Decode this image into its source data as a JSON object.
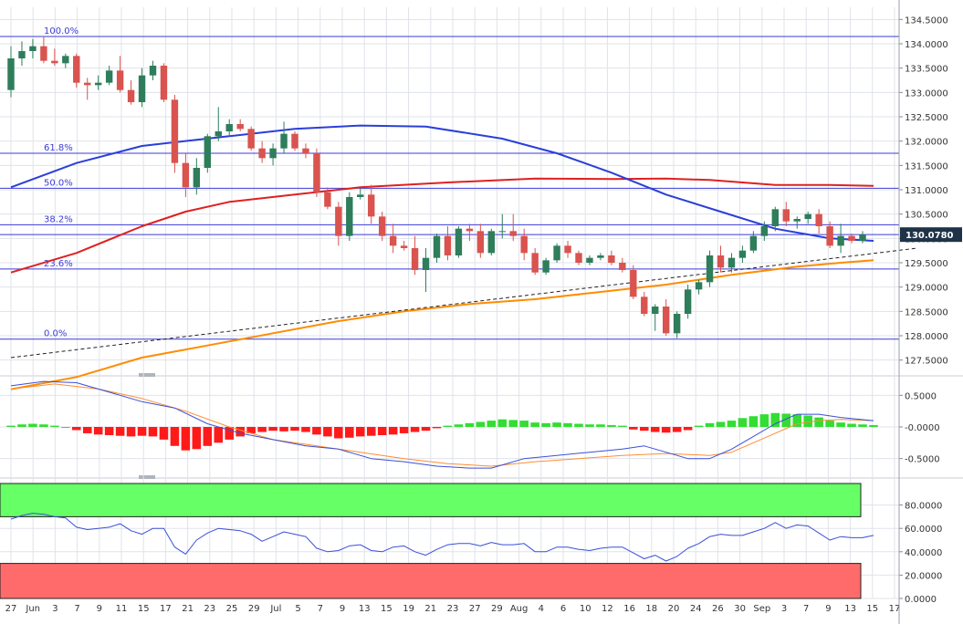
{
  "colors": {
    "up": "#2e7d5b",
    "down": "#d9534f",
    "fib_line": "#3b3bd6",
    "ma_blue": "#2a3fd8",
    "ma_red": "#e02020",
    "ma_orange": "#ff8c00",
    "trend": "#222222",
    "grid": "#dfe3ea",
    "price_tag_bg": "#1f3348",
    "price_tag_text": "#ffffff",
    "macd_pos": "#33dd33",
    "macd_neg": "#ff1a1a",
    "macd_line": "#3b4fd8",
    "signal_line": "#ff8c33",
    "rsi_line": "#3b4fd8",
    "ob_zone": "#66ff66",
    "os_zone": "#ff6b6b"
  },
  "chart_data": [
    {
      "type": "candlestick",
      "ylim": [
        127.25,
        134.75
      ],
      "y_ticks": [
        "134.5000",
        "134.0000",
        "133.5000",
        "133.0000",
        "132.5000",
        "132.0000",
        "131.5000",
        "131.0000",
        "130.5000",
        "130.0000",
        "129.5000",
        "129.0000",
        "128.5000",
        "128.0000",
        "127.5000"
      ],
      "x_ticks": [
        "27",
        "Jun",
        "3",
        "7",
        "9",
        "11",
        "15",
        "17",
        "21",
        "23",
        "25",
        "29",
        "Jul",
        "5",
        "7",
        "9",
        "13",
        "15",
        "19",
        "21",
        "23",
        "27",
        "29",
        "Aug",
        "4",
        "6",
        "10",
        "12",
        "16",
        "18",
        "20",
        "24",
        "26",
        "30",
        "Sep",
        "3",
        "7",
        "9",
        "13",
        "15",
        "17"
      ],
      "last_price": "130.0780",
      "fib_levels": [
        {
          "label": "100.0%",
          "value": 134.15
        },
        {
          "label": "61.8%",
          "value": 131.75
        },
        {
          "label": "50.0%",
          "value": 131.03
        },
        {
          "label": "38.2%",
          "value": 130.28
        },
        {
          "label": "23.6%",
          "value": 129.37
        },
        {
          "label": "0.0%",
          "value": 127.93
        }
      ],
      "candles": [
        [
          133.05,
          133.95,
          132.9,
          133.7
        ],
        [
          133.7,
          134.05,
          133.55,
          133.85
        ],
        [
          133.85,
          134.1,
          133.7,
          133.95
        ],
        [
          133.95,
          134.15,
          133.6,
          133.65
        ],
        [
          133.65,
          133.9,
          133.55,
          133.6
        ],
        [
          133.6,
          133.8,
          133.5,
          133.75
        ],
        [
          133.75,
          133.8,
          133.1,
          133.2
        ],
        [
          133.2,
          133.3,
          132.85,
          133.15
        ],
        [
          133.15,
          133.35,
          133.05,
          133.2
        ],
        [
          133.2,
          133.55,
          133.15,
          133.45
        ],
        [
          133.45,
          133.75,
          133.0,
          133.05
        ],
        [
          133.05,
          133.25,
          132.75,
          132.8
        ],
        [
          132.8,
          133.5,
          132.7,
          133.35
        ],
        [
          133.35,
          133.65,
          133.25,
          133.55
        ],
        [
          133.55,
          133.6,
          132.8,
          132.85
        ],
        [
          132.85,
          132.95,
          131.35,
          131.55
        ],
        [
          131.55,
          131.75,
          130.85,
          131.05
        ],
        [
          131.05,
          131.65,
          130.9,
          131.45
        ],
        [
          131.45,
          132.15,
          131.35,
          132.1
        ],
        [
          132.1,
          132.7,
          132.0,
          132.2
        ],
        [
          132.2,
          132.45,
          132.1,
          132.35
        ],
        [
          132.35,
          132.45,
          132.2,
          132.25
        ],
        [
          132.25,
          132.3,
          131.8,
          131.85
        ],
        [
          131.85,
          132.0,
          131.55,
          131.65
        ],
        [
          131.65,
          131.95,
          131.5,
          131.85
        ],
        [
          131.85,
          132.4,
          131.75,
          132.15
        ],
        [
          132.15,
          132.2,
          131.8,
          131.85
        ],
        [
          131.85,
          131.95,
          131.65,
          131.75
        ],
        [
          131.75,
          131.85,
          130.85,
          130.95
        ],
        [
          130.95,
          131.05,
          130.6,
          130.65
        ],
        [
          130.65,
          130.75,
          129.85,
          130.05
        ],
        [
          130.05,
          130.95,
          129.95,
          130.85
        ],
        [
          130.85,
          131.05,
          130.8,
          130.9
        ],
        [
          130.9,
          131.1,
          130.3,
          130.45
        ],
        [
          130.45,
          130.55,
          129.95,
          130.05
        ],
        [
          130.05,
          130.3,
          129.7,
          129.85
        ],
        [
          129.85,
          129.95,
          129.75,
          129.8
        ],
        [
          129.8,
          130.05,
          129.25,
          129.35
        ],
        [
          129.35,
          129.8,
          128.9,
          129.6
        ],
        [
          129.6,
          130.1,
          129.5,
          130.05
        ],
        [
          130.05,
          130.25,
          129.55,
          129.65
        ],
        [
          129.65,
          130.25,
          129.6,
          130.2
        ],
        [
          130.2,
          130.3,
          129.95,
          130.15
        ],
        [
          130.15,
          130.3,
          129.6,
          129.7
        ],
        [
          129.7,
          130.2,
          129.65,
          130.15
        ],
        [
          130.15,
          130.5,
          130.0,
          130.15
        ],
        [
          130.15,
          130.5,
          129.95,
          130.05
        ],
        [
          130.05,
          130.2,
          129.55,
          129.7
        ],
        [
          129.7,
          129.8,
          129.25,
          129.3
        ],
        [
          129.3,
          129.6,
          129.25,
          129.55
        ],
        [
          129.55,
          129.9,
          129.5,
          129.85
        ],
        [
          129.85,
          129.95,
          129.6,
          129.7
        ],
        [
          129.7,
          129.75,
          129.45,
          129.5
        ],
        [
          129.5,
          129.65,
          129.45,
          129.6
        ],
        [
          129.6,
          129.7,
          129.55,
          129.65
        ],
        [
          129.65,
          129.75,
          129.45,
          129.5
        ],
        [
          129.5,
          129.6,
          129.3,
          129.35
        ],
        [
          129.35,
          129.45,
          128.75,
          128.8
        ],
        [
          128.8,
          128.9,
          128.4,
          128.45
        ],
        [
          128.45,
          128.65,
          128.1,
          128.6
        ],
        [
          128.6,
          128.75,
          128.0,
          128.05
        ],
        [
          128.05,
          128.5,
          127.95,
          128.45
        ],
        [
          128.45,
          129.05,
          128.35,
          128.95
        ],
        [
          128.95,
          129.15,
          128.85,
          129.1
        ],
        [
          129.1,
          129.75,
          129.0,
          129.65
        ],
        [
          129.65,
          129.85,
          129.3,
          129.4
        ],
        [
          129.4,
          129.7,
          129.3,
          129.6
        ],
        [
          129.6,
          129.85,
          129.5,
          129.75
        ],
        [
          129.75,
          130.15,
          129.7,
          130.05
        ],
        [
          130.05,
          130.35,
          129.95,
          130.25
        ],
        [
          130.25,
          130.65,
          130.15,
          130.6
        ],
        [
          130.6,
          130.75,
          130.25,
          130.35
        ],
        [
          130.35,
          130.45,
          130.2,
          130.4
        ],
        [
          130.4,
          130.55,
          130.3,
          130.5
        ],
        [
          130.5,
          130.6,
          130.1,
          130.25
        ],
        [
          130.25,
          130.35,
          129.8,
          129.85
        ],
        [
          129.85,
          130.3,
          129.7,
          130.05
        ],
        [
          130.05,
          130.1,
          129.9,
          129.95
        ],
        [
          129.95,
          130.15,
          129.9,
          130.078
        ]
      ],
      "ma_blue": [
        [
          0,
          131.05
        ],
        [
          6,
          131.55
        ],
        [
          12,
          131.9
        ],
        [
          14,
          131.95
        ],
        [
          20,
          132.1
        ],
        [
          26,
          132.25
        ],
        [
          32,
          132.32
        ],
        [
          38,
          132.3
        ],
        [
          45,
          132.05
        ],
        [
          50,
          131.75
        ],
        [
          55,
          131.35
        ],
        [
          60,
          130.9
        ],
        [
          65,
          130.55
        ],
        [
          70,
          130.2
        ],
        [
          75,
          130.0
        ],
        [
          79,
          129.95
        ]
      ],
      "ma_red": [
        [
          0,
          129.3
        ],
        [
          6,
          129.7
        ],
        [
          12,
          130.25
        ],
        [
          16,
          130.55
        ],
        [
          20,
          130.75
        ],
        [
          26,
          130.9
        ],
        [
          32,
          131.05
        ],
        [
          40,
          131.15
        ],
        [
          48,
          131.23
        ],
        [
          55,
          131.22
        ],
        [
          60,
          131.23
        ],
        [
          64,
          131.2
        ],
        [
          70,
          131.1
        ],
        [
          75,
          131.1
        ],
        [
          79,
          131.08
        ]
      ],
      "ma_orange": [
        [
          0,
          126.9
        ],
        [
          6,
          127.15
        ],
        [
          12,
          127.55
        ],
        [
          18,
          127.8
        ],
        [
          24,
          128.05
        ],
        [
          30,
          128.3
        ],
        [
          36,
          128.5
        ],
        [
          42,
          128.65
        ],
        [
          48,
          128.75
        ],
        [
          54,
          128.9
        ],
        [
          60,
          129.05
        ],
        [
          66,
          129.25
        ],
        [
          72,
          129.42
        ],
        [
          76,
          129.5
        ],
        [
          79,
          129.55
        ]
      ],
      "trendline": [
        [
          0,
          127.55
        ],
        [
          83,
          129.8
        ]
      ]
    },
    {
      "type": "macd",
      "ylim": [
        -0.75,
        0.75
      ],
      "y_ticks": [
        "0.5000",
        "-0.0000",
        "-0.5000"
      ],
      "histogram": [
        0.02,
        0.04,
        0.05,
        0.04,
        0.02,
        0.0,
        -0.05,
        -0.1,
        -0.12,
        -0.13,
        -0.14,
        -0.15,
        -0.14,
        -0.15,
        -0.2,
        -0.3,
        -0.37,
        -0.35,
        -0.3,
        -0.25,
        -0.2,
        -0.15,
        -0.1,
        -0.08,
        -0.06,
        -0.07,
        -0.06,
        -0.08,
        -0.12,
        -0.15,
        -0.18,
        -0.17,
        -0.15,
        -0.14,
        -0.13,
        -0.12,
        -0.1,
        -0.08,
        -0.06,
        -0.02,
        0.02,
        0.04,
        0.06,
        0.08,
        0.1,
        0.12,
        0.11,
        0.1,
        0.07,
        0.06,
        0.07,
        0.06,
        0.05,
        0.04,
        0.04,
        0.03,
        0.02,
        -0.04,
        -0.06,
        -0.08,
        -0.09,
        -0.08,
        -0.05,
        0.02,
        0.06,
        0.08,
        0.1,
        0.14,
        0.17,
        0.2,
        0.22,
        0.21,
        0.2,
        0.18,
        0.15,
        0.1,
        0.07,
        0.05,
        0.04,
        0.03
      ],
      "macd": [
        [
          0,
          0.65
        ],
        [
          3,
          0.72
        ],
        [
          6,
          0.7
        ],
        [
          9,
          0.55
        ],
        [
          12,
          0.4
        ],
        [
          15,
          0.3
        ],
        [
          18,
          0.05
        ],
        [
          21,
          -0.1
        ],
        [
          24,
          -0.2
        ],
        [
          27,
          -0.3
        ],
        [
          30,
          -0.35
        ],
        [
          33,
          -0.5
        ],
        [
          36,
          -0.55
        ],
        [
          39,
          -0.62
        ],
        [
          42,
          -0.65
        ],
        [
          44,
          -0.65
        ],
        [
          47,
          -0.5
        ],
        [
          50,
          -0.45
        ],
        [
          53,
          -0.4
        ],
        [
          56,
          -0.35
        ],
        [
          58,
          -0.3
        ],
        [
          60,
          -0.4
        ],
        [
          62,
          -0.5
        ],
        [
          64,
          -0.5
        ],
        [
          66,
          -0.35
        ],
        [
          68,
          -0.15
        ],
        [
          70,
          0.05
        ],
        [
          72,
          0.2
        ],
        [
          74,
          0.2
        ],
        [
          76,
          0.15
        ],
        [
          79,
          0.1
        ]
      ],
      "signal": [
        [
          0,
          0.6
        ],
        [
          4,
          0.68
        ],
        [
          8,
          0.6
        ],
        [
          12,
          0.45
        ],
        [
          16,
          0.25
        ],
        [
          20,
          0.0
        ],
        [
          24,
          -0.2
        ],
        [
          28,
          -0.3
        ],
        [
          32,
          -0.4
        ],
        [
          36,
          -0.5
        ],
        [
          40,
          -0.58
        ],
        [
          44,
          -0.62
        ],
        [
          48,
          -0.55
        ],
        [
          52,
          -0.5
        ],
        [
          56,
          -0.45
        ],
        [
          60,
          -0.42
        ],
        [
          64,
          -0.45
        ],
        [
          66,
          -0.4
        ],
        [
          68,
          -0.25
        ],
        [
          70,
          -0.1
        ],
        [
          72,
          0.05
        ],
        [
          74,
          0.1
        ],
        [
          76,
          0.12
        ],
        [
          79,
          0.1
        ]
      ]
    },
    {
      "type": "rsi",
      "ylim": [
        0,
        100
      ],
      "y_ticks": [
        "80.0000",
        "60.0000",
        "40.0000",
        "20.0000",
        "0.0000"
      ],
      "overbought": 70,
      "oversold": 30,
      "values": [
        68,
        71,
        73,
        72,
        70,
        69,
        61,
        59,
        60,
        61,
        64,
        58,
        55,
        60,
        60,
        44,
        38,
        50,
        56,
        60,
        59,
        58,
        55,
        49,
        53,
        57,
        55,
        53,
        43,
        40,
        41,
        45,
        46,
        41,
        40,
        44,
        45,
        40,
        37,
        42,
        46,
        47,
        47,
        45,
        48,
        46,
        46,
        47,
        40,
        40,
        44,
        44,
        42,
        41,
        43,
        44,
        44,
        39,
        34,
        37,
        32,
        36,
        43,
        47,
        53,
        55,
        54,
        54,
        57,
        60,
        65,
        60,
        63,
        62,
        56,
        50,
        53,
        52,
        52,
        54
      ]
    }
  ]
}
